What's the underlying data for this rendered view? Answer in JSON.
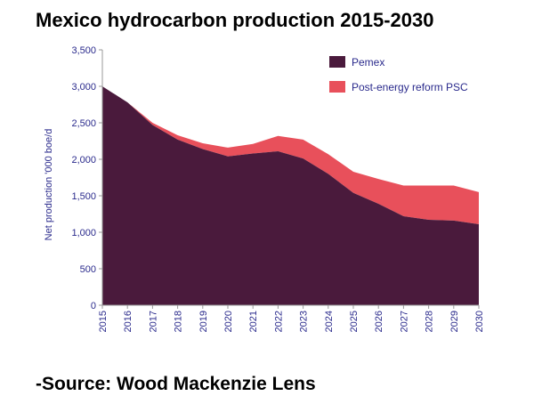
{
  "page": {
    "title": "Mexico hydrocarbon production 2015-2030",
    "source": "-Source: Wood Mackenzie Lens"
  },
  "chart_data": {
    "type": "area",
    "stacked": true,
    "title": "Mexico hydrocarbon production 2015-2030",
    "xlabel": "",
    "ylabel": "Net production '000 boe/d",
    "ylim": [
      0,
      3500
    ],
    "yticks": [
      0,
      500,
      1000,
      1500,
      2000,
      2500,
      3000,
      3500
    ],
    "x": [
      "2015",
      "2016",
      "2017",
      "2018",
      "2019",
      "2020",
      "2021",
      "2022",
      "2023",
      "2024",
      "2025",
      "2026",
      "2027",
      "2028",
      "2029",
      "2030"
    ],
    "series": [
      {
        "name": "Pemex",
        "color": "#4a1a3c",
        "values": [
          3000,
          2780,
          2470,
          2270,
          2140,
          2040,
          2080,
          2110,
          2010,
          1800,
          1540,
          1390,
          1220,
          1170,
          1160,
          1110
        ]
      },
      {
        "name": "Post-energy reform PSC",
        "color": "#e8505b",
        "values": [
          0,
          0,
          30,
          60,
          80,
          120,
          130,
          210,
          260,
          270,
          290,
          340,
          420,
          470,
          480,
          440
        ]
      }
    ],
    "legend": "top-right",
    "grid": false
  }
}
